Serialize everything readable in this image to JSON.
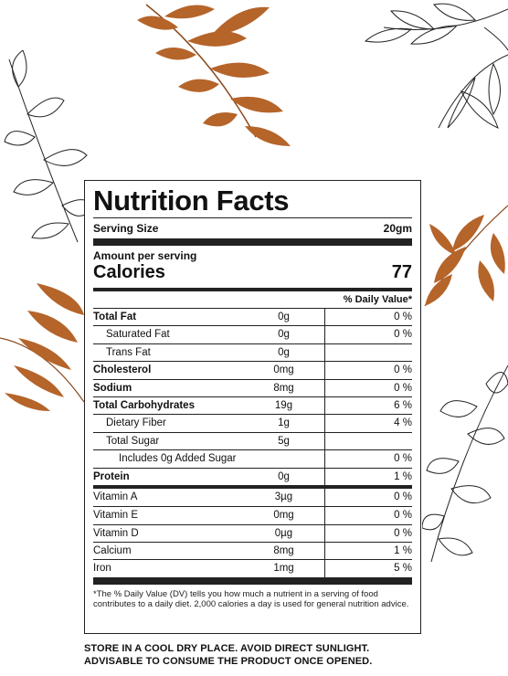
{
  "title": "Nutrition Facts",
  "serving": {
    "label": "Serving Size",
    "value": "20gm"
  },
  "amount_label": "Amount per serving",
  "calories": {
    "label": "Calories",
    "value": "77"
  },
  "dv_header": "% Daily Value*",
  "nutrients": [
    {
      "name": "Total Fat",
      "qty": "0g",
      "pct": "0 %"
    },
    {
      "name": "Saturated Fat",
      "qty": "0g",
      "pct": "0 %"
    },
    {
      "name": "Trans Fat",
      "qty": "0g",
      "pct": ""
    },
    {
      "name": "Cholesterol",
      "qty": "0mg",
      "pct": "0 %"
    },
    {
      "name": "Sodium",
      "qty": "8mg",
      "pct": "0 %"
    },
    {
      "name": "Total Carbohydrates",
      "qty": "19g",
      "pct": "6 %"
    },
    {
      "name": "Dietary Fiber",
      "qty": "1g",
      "pct": "4 %"
    },
    {
      "name": "Total Sugar",
      "qty": "5g",
      "pct": ""
    },
    {
      "name": "Includes 0g Added Sugar",
      "qty": "",
      "pct": "0 %"
    },
    {
      "name": "Protein",
      "qty": "0g",
      "pct": "1 %"
    }
  ],
  "vitamins": [
    {
      "name": "Vitamin A",
      "qty": "3µg",
      "pct": "0 %"
    },
    {
      "name": "Vitamin E",
      "qty": "0mg",
      "pct": "0 %"
    },
    {
      "name": "Vitamin D",
      "qty": "0µg",
      "pct": "0 %"
    },
    {
      "name": "Calcium",
      "qty": "8mg",
      "pct": "1 %"
    },
    {
      "name": "Iron",
      "qty": "1mg",
      "pct": "5 %"
    }
  ],
  "footnote": "*The % Daily Value (DV) tells you how much a nutrient in a serving of food contributes to a daily diet. 2,000 calories a day is used for general nutrition advice.",
  "storage": [
    "STORE IN A COOL DRY PLACE. AVOID DIRECT SUNLIGHT.",
    "ADVISABLE TO CONSUME THE PRODUCT ONCE OPENED."
  ],
  "colors": {
    "leaf_brown": "#b5642a",
    "line": "#222222"
  }
}
